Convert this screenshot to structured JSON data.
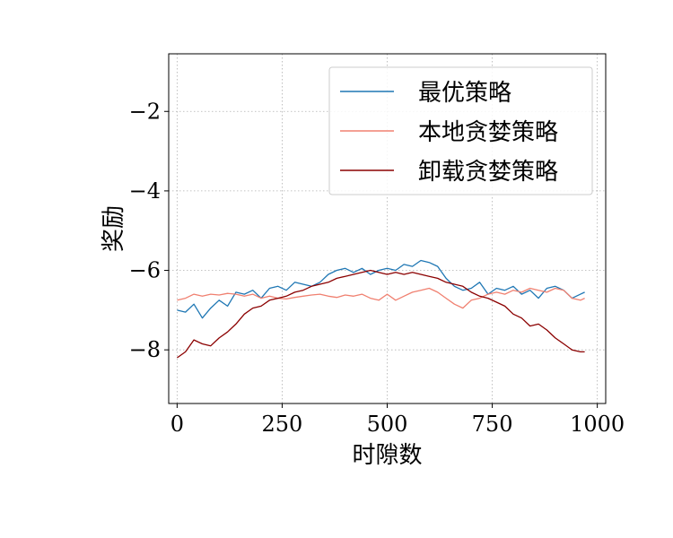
{
  "chart_data": {
    "type": "line",
    "xlabel": "时隙数",
    "ylabel": "奖励",
    "xlim": [
      -20,
      1020
    ],
    "ylim": [
      -9.35,
      -0.55
    ],
    "xticks": [
      0,
      250,
      500,
      750,
      1000
    ],
    "xtick_labels": [
      "0",
      "250",
      "500",
      "750",
      "1000"
    ],
    "yticks": [
      -2,
      -4,
      -6,
      -8
    ],
    "ytick_labels": [
      "−2",
      "−4",
      "−6",
      "−8"
    ],
    "grid": true,
    "legend_position": "top-right",
    "series": [
      {
        "name": "最优策略",
        "color": "#1f77b4",
        "x": [
          0,
          20,
          40,
          60,
          80,
          100,
          120,
          140,
          160,
          180,
          200,
          220,
          240,
          260,
          280,
          300,
          320,
          340,
          360,
          380,
          400,
          420,
          440,
          460,
          480,
          500,
          520,
          540,
          560,
          580,
          600,
          620,
          640,
          660,
          680,
          700,
          720,
          740,
          760,
          780,
          800,
          820,
          840,
          860,
          880,
          900,
          920,
          940,
          960,
          970
        ],
        "y": [
          -7.0,
          -7.05,
          -6.85,
          -7.2,
          -6.95,
          -6.75,
          -6.9,
          -6.55,
          -6.6,
          -6.5,
          -6.7,
          -6.45,
          -6.4,
          -6.5,
          -6.3,
          -6.35,
          -6.4,
          -6.3,
          -6.1,
          -6.0,
          -5.95,
          -6.05,
          -5.95,
          -6.1,
          -6.0,
          -5.95,
          -6.0,
          -5.85,
          -5.9,
          -5.75,
          -5.8,
          -5.9,
          -6.2,
          -6.4,
          -6.5,
          -6.45,
          -6.3,
          -6.6,
          -6.45,
          -6.5,
          -6.4,
          -6.6,
          -6.5,
          -6.7,
          -6.45,
          -6.4,
          -6.5,
          -6.7,
          -6.6,
          -6.55
        ]
      },
      {
        "name": "本地贪婪策略",
        "color": "#f08070",
        "x": [
          0,
          20,
          40,
          60,
          80,
          100,
          120,
          140,
          160,
          180,
          200,
          220,
          240,
          260,
          280,
          300,
          320,
          340,
          360,
          380,
          400,
          420,
          440,
          460,
          480,
          500,
          520,
          540,
          560,
          580,
          600,
          620,
          640,
          660,
          680,
          700,
          720,
          740,
          760,
          780,
          800,
          820,
          840,
          860,
          880,
          900,
          920,
          940,
          960,
          970
        ],
        "y": [
          -6.75,
          -6.7,
          -6.6,
          -6.65,
          -6.6,
          -6.62,
          -6.58,
          -6.6,
          -6.65,
          -6.6,
          -6.7,
          -6.65,
          -6.7,
          -6.72,
          -6.68,
          -6.65,
          -6.62,
          -6.6,
          -6.65,
          -6.68,
          -6.62,
          -6.65,
          -6.6,
          -6.7,
          -6.75,
          -6.6,
          -6.75,
          -6.65,
          -6.55,
          -6.5,
          -6.45,
          -6.55,
          -6.7,
          -6.85,
          -6.95,
          -6.75,
          -6.7,
          -6.6,
          -6.55,
          -6.6,
          -6.5,
          -6.55,
          -6.45,
          -6.5,
          -6.55,
          -6.45,
          -6.5,
          -6.7,
          -6.75,
          -6.7
        ]
      },
      {
        "name": "卸载贪婪策略",
        "color": "#8b0000",
        "x": [
          0,
          20,
          40,
          60,
          80,
          100,
          120,
          140,
          160,
          180,
          200,
          220,
          240,
          260,
          280,
          300,
          320,
          340,
          360,
          380,
          400,
          420,
          440,
          460,
          480,
          500,
          520,
          540,
          560,
          580,
          600,
          620,
          640,
          660,
          680,
          700,
          720,
          740,
          760,
          780,
          800,
          820,
          840,
          860,
          880,
          900,
          920,
          940,
          960,
          970
        ],
        "y": [
          -8.2,
          -8.05,
          -7.75,
          -7.85,
          -7.9,
          -7.7,
          -7.55,
          -7.35,
          -7.1,
          -6.95,
          -6.9,
          -6.75,
          -6.7,
          -6.65,
          -6.55,
          -6.5,
          -6.4,
          -6.35,
          -6.3,
          -6.2,
          -6.15,
          -6.1,
          -6.05,
          -6.0,
          -6.05,
          -6.1,
          -6.05,
          -6.1,
          -6.05,
          -6.1,
          -6.15,
          -6.2,
          -6.3,
          -6.35,
          -6.4,
          -6.55,
          -6.65,
          -6.7,
          -6.8,
          -6.9,
          -7.1,
          -7.2,
          -7.4,
          -7.35,
          -7.5,
          -7.7,
          -7.85,
          -8.0,
          -8.05,
          -8.05
        ]
      }
    ]
  }
}
